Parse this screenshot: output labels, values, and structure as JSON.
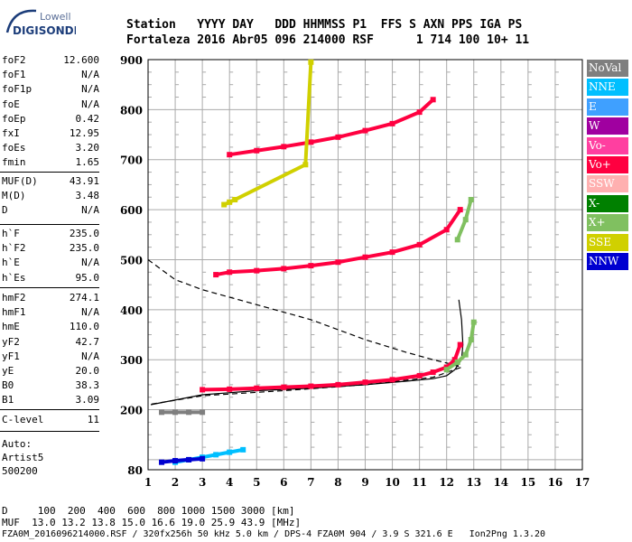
{
  "logo": {
    "line1": "Lowell",
    "line2": "DIGISONDE"
  },
  "header": {
    "line1": "Station   YYYY DAY   DDD HHMMSS P1  FFS S AXN PPS IGA PS",
    "line2": "Fortaleza 2016 Abr05 096 214000 RSF      1 714 100 10+ 11"
  },
  "params_group1": [
    {
      "name": "foF2",
      "value": "12.600"
    },
    {
      "name": "foF1",
      "value": "N/A"
    },
    {
      "name": "foF1p",
      "value": "N/A"
    },
    {
      "name": "foE",
      "value": "N/A"
    },
    {
      "name": "foEp",
      "value": "0.42"
    },
    {
      "name": "fxI",
      "value": "12.95"
    },
    {
      "name": "foEs",
      "value": "3.20"
    },
    {
      "name": "fmin",
      "value": "1.65"
    }
  ],
  "params_group2": [
    {
      "name": "MUF(D)",
      "value": "43.91"
    },
    {
      "name": "M(D)",
      "value": "3.48"
    },
    {
      "name": "D",
      "value": "N/A"
    }
  ],
  "params_group3": [
    {
      "name": "h`F",
      "value": "235.0"
    },
    {
      "name": "h`F2",
      "value": "235.0"
    },
    {
      "name": "h`E",
      "value": "N/A"
    },
    {
      "name": "h`Es",
      "value": "95.0"
    }
  ],
  "params_group4": [
    {
      "name": "hmF2",
      "value": "274.1"
    },
    {
      "name": "hmF1",
      "value": "N/A"
    },
    {
      "name": "hmE",
      "value": "110.0"
    },
    {
      "name": "yF2",
      "value": "42.7"
    },
    {
      "name": "yF1",
      "value": "N/A"
    },
    {
      "name": "yE",
      "value": "20.0"
    },
    {
      "name": "B0",
      "value": "38.3"
    },
    {
      "name": "B1",
      "value": "3.09"
    }
  ],
  "params_group5": [
    {
      "name": "C-level",
      "value": "11"
    }
  ],
  "auto": {
    "line1": "Auto:",
    "line2": "Artist5",
    "line3": "500200"
  },
  "legend": [
    {
      "label": "NoVal",
      "color": "#7f7f7f"
    },
    {
      "label": "NNE",
      "color": "#00bfff"
    },
    {
      "label": "E",
      "color": "#3fa0ff"
    },
    {
      "label": "W",
      "color": "#a000a0"
    },
    {
      "label": "Vo-",
      "color": "#ff3fa0"
    },
    {
      "label": "Vo+",
      "color": "#ff0040"
    },
    {
      "label": "SSW",
      "color": "#ffb0b0"
    },
    {
      "label": "X-",
      "color": "#008000"
    },
    {
      "label": "X+",
      "color": "#80c060"
    },
    {
      "label": "SSE",
      "color": "#d0d000"
    },
    {
      "label": "NNW",
      "color": "#0000d0"
    }
  ],
  "bottom": {
    "line1": "D     100  200  400  600  800 1000 1500 3000 [km]",
    "line2": "MUF  13.0 13.2 13.8 15.0 16.6 19.0 25.9 43.9 [MHz]",
    "line3": "FZA0M_2016096214000.RSF / 320fx256h 50 kHz 5.0 km / DPS-4 FZA0M 904 / 3.9 S 321.6 E   Ion2Png 1.3.20"
  },
  "chart_data": {
    "type": "scatter",
    "title": "",
    "xlabel": "",
    "ylabel": "",
    "xlim": [
      1,
      17
    ],
    "ylim": [
      80,
      900
    ],
    "x_ticks": [
      "1",
      "2",
      "3",
      "4",
      "5",
      "6",
      "7",
      "8",
      "9",
      "10",
      "11",
      "12",
      "13",
      "14",
      "15",
      "16",
      "17"
    ],
    "y_ticks": [
      "80",
      "200",
      "300",
      "400",
      "500",
      "600",
      "700",
      "800",
      "900"
    ],
    "grid": true,
    "series": [
      {
        "name": "Vo+",
        "color": "#ff0040",
        "x": [
          3.0,
          4.0,
          5.0,
          6.0,
          7.0,
          8.0,
          9.0,
          10.0,
          11.0,
          11.5,
          12.0,
          12.3,
          12.5
        ],
        "y": [
          240,
          241,
          243,
          245,
          247,
          250,
          255,
          260,
          268,
          275,
          285,
          300,
          330
        ]
      },
      {
        "name": "Vo+",
        "color": "#ff0040",
        "x": [
          3.5,
          4.0,
          5.0,
          6.0,
          7.0,
          8.0,
          9.0,
          10.0,
          11.0,
          12.0,
          12.5
        ],
        "y": [
          470,
          475,
          478,
          482,
          488,
          495,
          505,
          515,
          530,
          560,
          600
        ]
      },
      {
        "name": "Vo+",
        "color": "#ff0040",
        "x": [
          4.0,
          5.0,
          6.0,
          7.0,
          8.0,
          9.0,
          10.0,
          11.0,
          11.5
        ],
        "y": [
          710,
          718,
          726,
          735,
          745,
          758,
          772,
          795,
          820
        ]
      },
      {
        "name": "X+",
        "color": "#80c060",
        "x": [
          12.0,
          12.4,
          12.7,
          12.9,
          13.0
        ],
        "y": [
          280,
          295,
          310,
          340,
          375
        ]
      },
      {
        "name": "X+",
        "color": "#80c060",
        "x": [
          12.4,
          12.7,
          12.9
        ],
        "y": [
          540,
          580,
          620
        ]
      },
      {
        "name": "SSE",
        "color": "#d0d000",
        "x": [
          3.8,
          4.0,
          4.2,
          6.8,
          7.0
        ],
        "y": [
          610,
          615,
          620,
          690,
          895
        ]
      },
      {
        "name": "NNE",
        "color": "#00bfff",
        "x": [
          2.0,
          2.5,
          3.0,
          3.5,
          4.0,
          4.5
        ],
        "y": [
          95,
          100,
          105,
          110,
          115,
          120
        ]
      },
      {
        "name": "NNW",
        "color": "#0000d0",
        "x": [
          1.5,
          2.0,
          2.5,
          3.0
        ],
        "y": [
          95,
          98,
          100,
          102
        ]
      },
      {
        "name": "NoVal",
        "color": "#7f7f7f",
        "x": [
          1.5,
          2.0,
          2.5,
          3.0
        ],
        "y": [
          195,
          195,
          195,
          195
        ]
      }
    ],
    "profile_solid": {
      "x": [
        1.1,
        3.0,
        5.0,
        7.0,
        9.0,
        10.5,
        11.5,
        12.0,
        12.3,
        12.55,
        12.6,
        12.55,
        12.45
      ],
      "y": [
        210,
        230,
        238,
        243,
        250,
        257,
        262,
        268,
        280,
        300,
        330,
        380,
        420
      ]
    },
    "profile_dashed": {
      "x": [
        1.0,
        2.0,
        3.0,
        4.0,
        5.0,
        7.0,
        9.0,
        10.5,
        11.5,
        12.1,
        12.55,
        11.5,
        9.0,
        6.0,
        3.0,
        1.0
      ],
      "y": [
        500,
        460,
        440,
        425,
        410,
        380,
        340,
        315,
        300,
        292,
        285,
        265,
        250,
        238,
        228,
        210
      ]
    }
  }
}
